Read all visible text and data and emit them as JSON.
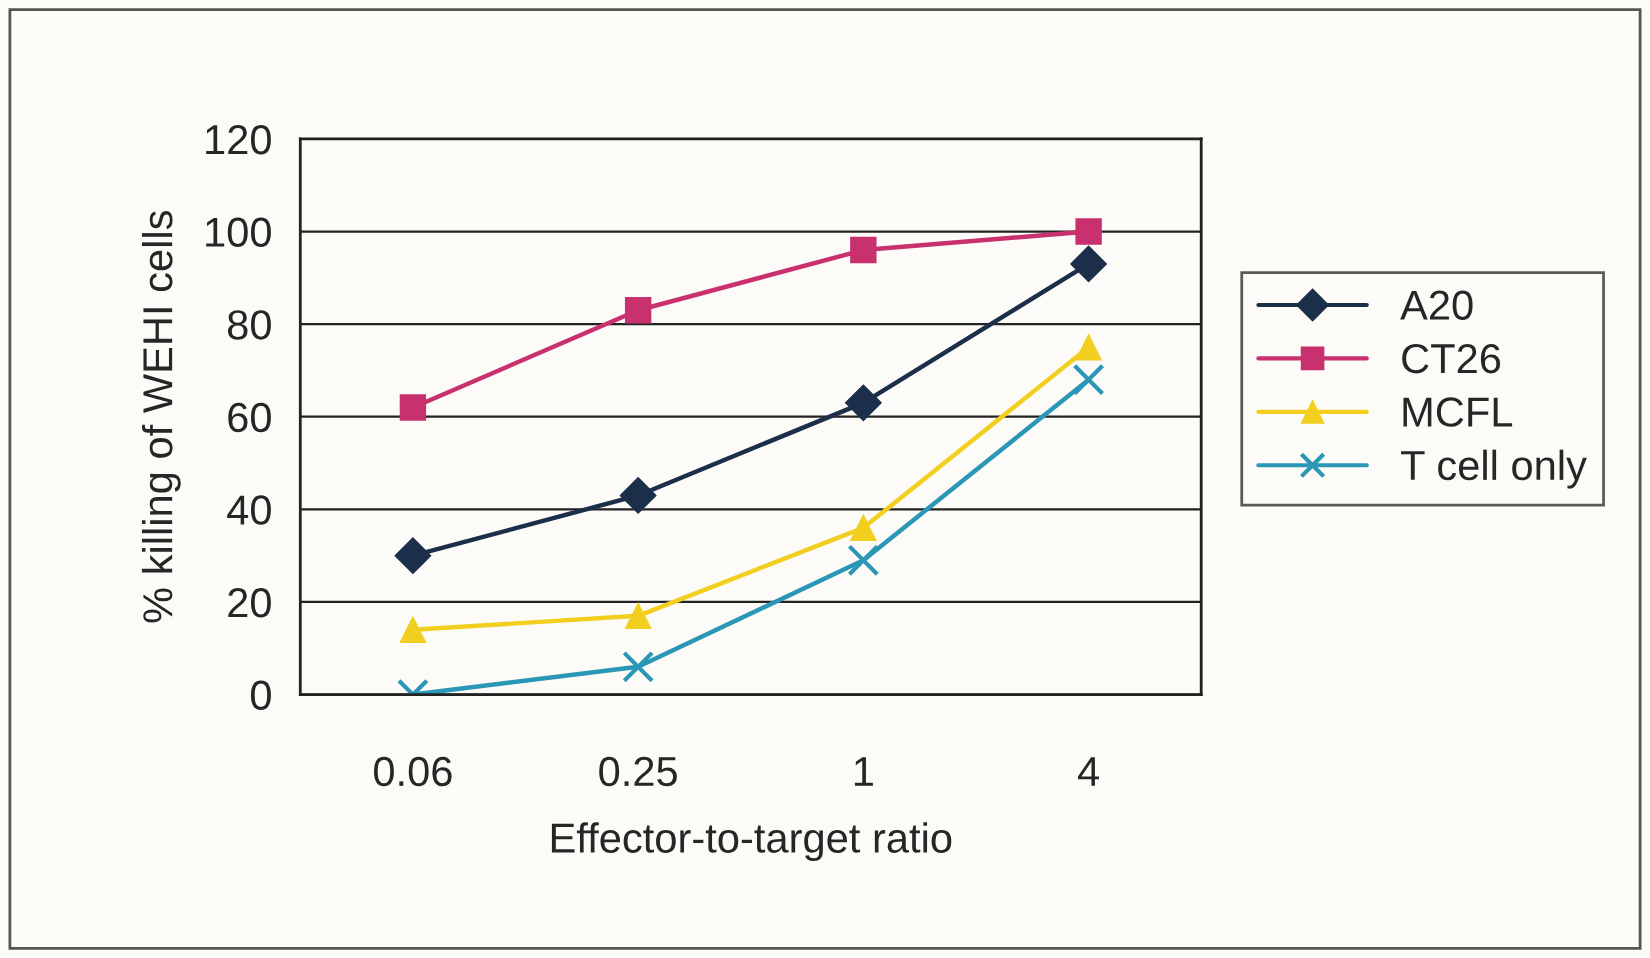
{
  "chart_data": {
    "type": "line",
    "xlabel": "Effector-to-target ratio",
    "ylabel": "% killing of WEHI cells",
    "categories": [
      "0.06",
      "0.25",
      "1",
      "4"
    ],
    "series": [
      {
        "name": "A20",
        "color": "#1c2f4a",
        "marker": "diamond",
        "values": [
          30,
          43,
          63,
          93
        ]
      },
      {
        "name": "CT26",
        "color": "#c8306e",
        "marker": "square",
        "values": [
          62,
          83,
          96,
          100
        ]
      },
      {
        "name": "MCFL",
        "color": "#f2cf1e",
        "marker": "triangle",
        "values": [
          14,
          17,
          36,
          75
        ]
      },
      {
        "name": "T cell only",
        "color": "#2b97b6",
        "marker": "cross",
        "values": [
          0,
          6,
          29,
          68
        ]
      }
    ],
    "ylim": [
      0,
      120
    ],
    "yticks": [
      0,
      20,
      40,
      60,
      80,
      100,
      120
    ],
    "grid": "y",
    "legend": "right"
  }
}
